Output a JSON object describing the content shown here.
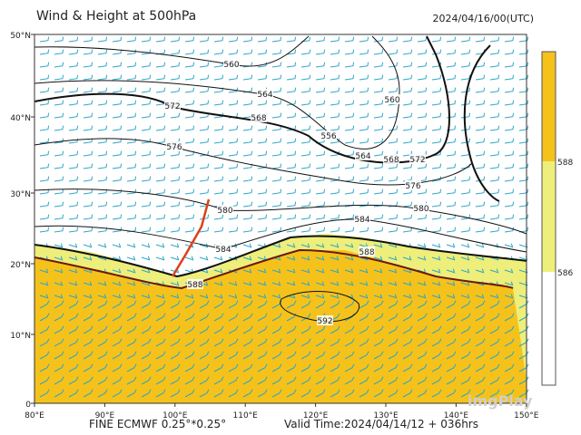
{
  "header": {
    "title": "Wind & Height at 500hPa",
    "time": "2024/04/16/00(UTC)"
  },
  "lat_labels": [
    "50°N",
    "40°N",
    "30°N",
    "20°N",
    "10°N",
    "0"
  ],
  "lon_labels": [
    "80°E",
    "90°E",
    "100°E",
    "110°E",
    "120°E",
    "130°E",
    "140°E",
    "150°E"
  ],
  "contour_labels": [
    "560",
    "564",
    "560",
    "572",
    "568",
    "556",
    "564",
    "568",
    "572",
    "576",
    "576",
    "580",
    "580",
    "584",
    "584",
    "588",
    "588",
    "592"
  ],
  "colorbar": {
    "labels": [
      "588",
      "586"
    ]
  },
  "footer": {
    "model": "FINE ECMWF 0.25°*0.25°",
    "valid": "Valid Time:2024/04/14/12 + 036hrs"
  },
  "watermark": "imgPlay"
}
